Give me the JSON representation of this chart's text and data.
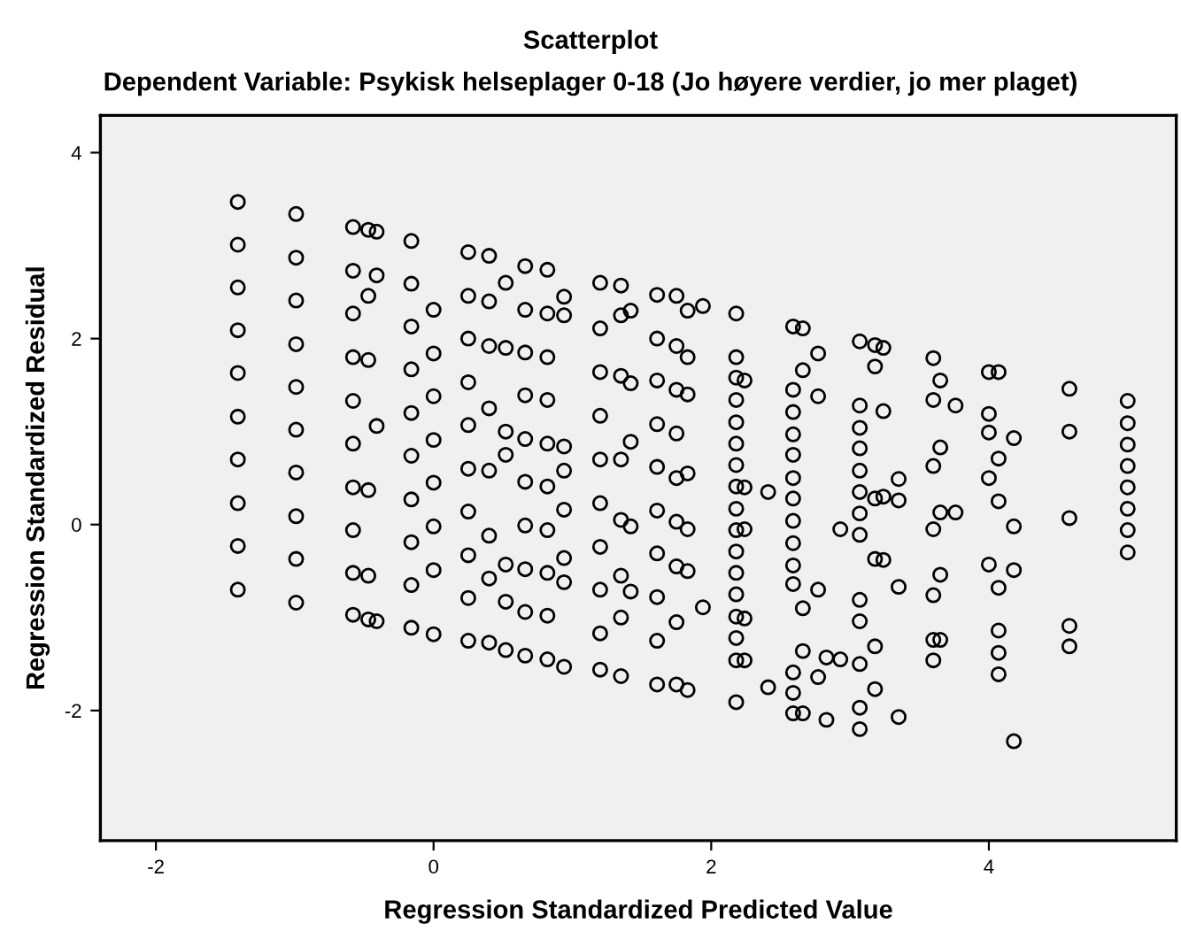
{
  "chart_data": {
    "type": "scatter",
    "title": "Scatterplot",
    "subtitle": "Dependent Variable: Psykisk helseplager 0-18 (Jo høyere verdier, jo mer plaget)",
    "xlabel": "Regression Standardized Predicted Value",
    "ylabel": "Regression Standardized Residual",
    "xlim": [
      -2.4,
      5.35
    ],
    "ylim": [
      -3.4,
      4.4
    ],
    "xticks": [
      -2,
      0,
      2,
      4
    ],
    "yticks": [
      -2,
      0,
      2,
      4
    ],
    "grid": false,
    "marker": "circle",
    "series": [
      {
        "color": "#000000",
        "x": [
          -1.41,
          -1.41,
          -1.41,
          -1.41,
          -1.41,
          -1.41,
          -1.41,
          -1.41,
          -1.41,
          -1.41,
          -0.99,
          -0.99,
          -0.99,
          -0.99,
          -0.99,
          -0.99,
          -0.99,
          -0.99,
          -0.99,
          -0.99,
          -0.58,
          -0.58,
          -0.58,
          -0.58,
          -0.58,
          -0.58,
          -0.58,
          -0.58,
          -0.58,
          -0.58,
          -0.47,
          -0.47,
          -0.47,
          -0.47,
          -0.47,
          -0.47,
          -0.41,
          -0.41,
          -0.41,
          -0.41,
          -0.16,
          -0.16,
          -0.16,
          -0.16,
          -0.16,
          -0.16,
          -0.16,
          -0.16,
          -0.16,
          -0.16,
          0.0,
          0.0,
          0.0,
          0.0,
          0.0,
          0.0,
          0.0,
          0.0,
          0.25,
          0.25,
          0.25,
          0.25,
          0.25,
          0.25,
          0.25,
          0.25,
          0.25,
          0.25,
          0.4,
          0.4,
          0.4,
          0.4,
          0.4,
          0.4,
          0.4,
          0.4,
          0.52,
          0.52,
          0.52,
          0.52,
          0.52,
          0.52,
          0.52,
          0.66,
          0.66,
          0.66,
          0.66,
          0.66,
          0.66,
          0.66,
          0.66,
          0.66,
          0.66,
          0.82,
          0.82,
          0.82,
          0.82,
          0.82,
          0.82,
          0.82,
          0.82,
          0.82,
          0.82,
          0.94,
          0.94,
          0.94,
          0.94,
          0.94,
          0.94,
          0.94,
          0.94,
          1.2,
          1.2,
          1.2,
          1.2,
          1.2,
          1.2,
          1.2,
          1.2,
          1.2,
          1.2,
          1.35,
          1.35,
          1.35,
          1.35,
          1.35,
          1.35,
          1.35,
          1.35,
          1.42,
          1.42,
          1.42,
          1.42,
          1.42,
          1.61,
          1.61,
          1.61,
          1.61,
          1.61,
          1.61,
          1.61,
          1.61,
          1.61,
          1.61,
          1.75,
          1.75,
          1.75,
          1.75,
          1.75,
          1.75,
          1.75,
          1.75,
          1.75,
          1.83,
          1.83,
          1.83,
          1.83,
          1.83,
          1.83,
          1.83,
          1.94,
          1.94,
          2.18,
          2.18,
          2.18,
          2.18,
          2.18,
          2.18,
          2.18,
          2.18,
          2.18,
          2.18,
          2.18,
          2.18,
          2.18,
          2.18,
          2.18,
          2.18,
          2.18,
          2.24,
          2.24,
          2.24,
          2.24,
          2.24,
          2.41,
          2.41,
          2.59,
          2.59,
          2.59,
          2.59,
          2.59,
          2.59,
          2.59,
          2.59,
          2.59,
          2.59,
          2.59,
          2.59,
          2.59,
          2.59,
          2.66,
          2.66,
          2.66,
          2.66,
          2.66,
          2.77,
          2.77,
          2.77,
          2.77,
          2.83,
          2.83,
          2.93,
          2.93,
          3.07,
          3.07,
          3.07,
          3.07,
          3.07,
          3.07,
          3.07,
          3.07,
          3.07,
          3.07,
          3.07,
          3.07,
          3.07,
          3.18,
          3.18,
          3.18,
          3.18,
          3.18,
          3.18,
          3.24,
          3.24,
          3.24,
          3.24,
          3.35,
          3.35,
          3.35,
          3.35,
          3.6,
          3.6,
          3.6,
          3.6,
          3.6,
          3.6,
          3.6,
          3.65,
          3.65,
          3.65,
          3.65,
          3.65,
          3.76,
          3.76,
          4.0,
          4.0,
          4.0,
          4.0,
          4.0,
          4.07,
          4.07,
          4.07,
          4.07,
          4.07,
          4.07,
          4.07,
          4.18,
          4.18,
          4.18,
          4.18,
          4.58,
          4.58,
          4.58,
          4.58,
          4.58,
          5.0,
          5.0,
          5.0,
          5.0,
          5.0,
          5.0,
          5.0,
          5.0
        ],
        "values": [
          3.47,
          3.01,
          2.55,
          2.09,
          1.63,
          1.16,
          0.7,
          0.23,
          -0.23,
          -0.7,
          3.34,
          2.87,
          2.41,
          1.94,
          1.48,
          1.02,
          0.56,
          0.09,
          -0.37,
          -0.84,
          3.2,
          2.73,
          2.27,
          1.8,
          1.33,
          0.87,
          0.4,
          -0.06,
          -0.52,
          -0.97,
          3.17,
          2.46,
          1.77,
          0.37,
          -0.55,
          -1.02,
          3.15,
          2.68,
          1.06,
          -1.04,
          3.05,
          2.59,
          2.13,
          1.67,
          1.2,
          0.74,
          0.27,
          -0.19,
          -0.65,
          -1.11,
          2.31,
          1.84,
          1.38,
          0.91,
          0.45,
          -0.02,
          -0.49,
          -1.18,
          2.93,
          2.46,
          2.0,
          1.53,
          1.07,
          0.6,
          0.14,
          -0.33,
          -0.79,
          -1.25,
          2.89,
          2.4,
          1.92,
          1.25,
          0.58,
          -0.12,
          -0.58,
          -1.27,
          2.6,
          1.9,
          1.0,
          0.75,
          -0.43,
          -0.83,
          -1.35,
          2.78,
          2.31,
          1.85,
          1.39,
          0.92,
          0.46,
          -0.01,
          -0.48,
          -0.94,
          -1.41,
          2.74,
          2.27,
          1.8,
          1.34,
          0.87,
          0.41,
          -0.06,
          -0.52,
          -0.98,
          -1.45,
          2.45,
          2.25,
          0.84,
          0.58,
          0.16,
          -0.36,
          -0.62,
          -1.53,
          2.6,
          2.11,
          1.64,
          1.17,
          0.7,
          0.23,
          -0.24,
          -0.7,
          -1.17,
          -1.56,
          2.57,
          2.25,
          1.6,
          0.7,
          0.05,
          -0.55,
          -1.0,
          -1.63,
          2.3,
          1.52,
          0.89,
          -0.02,
          -0.72,
          2.47,
          2.0,
          1.55,
          1.08,
          0.62,
          0.15,
          -0.31,
          -0.78,
          -1.25,
          -1.72,
          2.46,
          1.92,
          1.45,
          0.98,
          0.5,
          0.03,
          -0.45,
          -1.05,
          -1.72,
          2.3,
          1.8,
          1.4,
          0.55,
          -0.05,
          -0.5,
          -1.78,
          2.35,
          -0.89,
          2.27,
          1.8,
          1.58,
          1.34,
          1.1,
          0.87,
          0.64,
          0.41,
          0.17,
          -0.06,
          -0.29,
          -0.52,
          -0.75,
          -0.99,
          -1.22,
          -1.46,
          -1.91,
          1.55,
          0.4,
          -0.05,
          -1.01,
          -1.46,
          0.35,
          -1.75,
          2.13,
          1.45,
          1.21,
          0.97,
          0.75,
          0.5,
          0.28,
          0.04,
          -0.2,
          -0.44,
          -0.64,
          -1.59,
          -1.81,
          -2.03,
          2.11,
          1.66,
          -0.9,
          -1.36,
          -2.03,
          1.84,
          1.38,
          -0.7,
          -1.64,
          -1.43,
          -2.1,
          -0.05,
          -1.45,
          1.97,
          1.28,
          1.04,
          0.82,
          0.58,
          0.35,
          0.12,
          -0.11,
          -0.81,
          -1.04,
          -1.5,
          -1.97,
          -2.2,
          1.93,
          1.7,
          0.28,
          -0.37,
          -1.31,
          -1.77,
          1.9,
          1.22,
          0.3,
          -0.38,
          0.49,
          0.26,
          -0.67,
          -2.07,
          1.79,
          1.34,
          0.63,
          -0.05,
          -0.76,
          -1.24,
          -1.46,
          1.55,
          0.83,
          0.13,
          -0.54,
          -1.24,
          1.28,
          0.13,
          1.64,
          1.19,
          0.99,
          0.5,
          -0.43,
          1.64,
          0.71,
          0.25,
          -0.68,
          -1.14,
          -1.38,
          -1.61,
          0.93,
          -0.02,
          -0.49,
          -2.33,
          1.46,
          1.0,
          0.07,
          -1.09,
          -1.31,
          1.33,
          1.09,
          0.86,
          0.63,
          0.4,
          0.17,
          -0.06,
          -0.3
        ]
      }
    ]
  }
}
